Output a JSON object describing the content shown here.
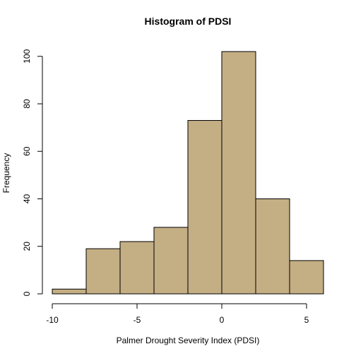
{
  "chart_data": {
    "type": "bar",
    "title": "Histogram of PDSI",
    "xlabel": "Palmer Drought Severity Index (PDSI)",
    "ylabel": "Frequency",
    "bins": [
      {
        "from": -10,
        "to": -8,
        "count": 2
      },
      {
        "from": -8,
        "to": -6,
        "count": 19
      },
      {
        "from": -6,
        "to": -4,
        "count": 22
      },
      {
        "from": -4,
        "to": -2,
        "count": 28
      },
      {
        "from": -2,
        "to": 0,
        "count": 73
      },
      {
        "from": 0,
        "to": 2,
        "count": 102
      },
      {
        "from": 2,
        "to": 4,
        "count": 40
      },
      {
        "from": 4,
        "to": 6,
        "count": 14
      }
    ],
    "xlim": [
      -10,
      6
    ],
    "ylim": [
      0,
      102
    ],
    "x_ticks": [
      -10,
      -5,
      0,
      5
    ],
    "x_tick_labels": [
      "-10",
      "-5",
      "0",
      "5"
    ],
    "y_ticks": [
      0,
      20,
      40,
      60,
      80,
      100
    ],
    "y_tick_labels": [
      "0",
      "20",
      "40",
      "60",
      "80",
      "100"
    ],
    "bar_fill": "#c4ae84",
    "grid": false,
    "legend": false
  }
}
